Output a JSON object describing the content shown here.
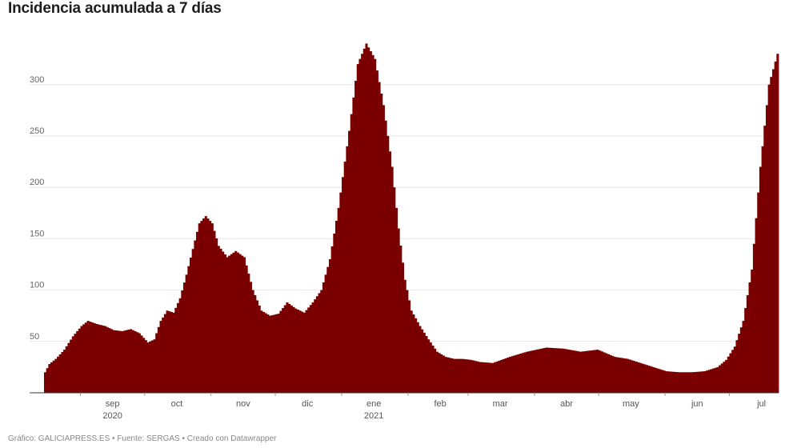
{
  "title": "Incidencia acumulada a 7 días",
  "footer": "Gráfico: GALICIAPRESS.ES • Fuente: SERGAS • Creado con Datawrapper",
  "chart_data": {
    "type": "bar",
    "title": "Incidencia acumulada a 7 días",
    "xlabel": "",
    "ylabel": "",
    "color": "#7a0000",
    "ylim": [
      0,
      345
    ],
    "yticks": [
      50,
      100,
      150,
      200,
      250,
      300
    ],
    "grid": true,
    "x_start": "2020-08-15",
    "x_end": "2021-07-23",
    "xtick_labels": [
      {
        "date": "2020-09-01",
        "label": "sep",
        "sub": "2020"
      },
      {
        "date": "2020-10-01",
        "label": "oct",
        "sub": ""
      },
      {
        "date": "2020-11-01",
        "label": "nov",
        "sub": ""
      },
      {
        "date": "2020-12-01",
        "label": "dic",
        "sub": ""
      },
      {
        "date": "2021-01-01",
        "label": "ene",
        "sub": "2021"
      },
      {
        "date": "2021-02-01",
        "label": "feb",
        "sub": ""
      },
      {
        "date": "2021-03-01",
        "label": "mar",
        "sub": ""
      },
      {
        "date": "2021-04-01",
        "label": "abr",
        "sub": ""
      },
      {
        "date": "2021-05-01",
        "label": "may",
        "sub": ""
      },
      {
        "date": "2021-06-01",
        "label": "jun",
        "sub": ""
      },
      {
        "date": "2021-07-01",
        "label": "jul",
        "sub": ""
      }
    ],
    "series": [
      {
        "x": [
          "2020-08-15",
          "2020-08-17",
          "2020-08-20",
          "2020-08-24",
          "2020-08-28",
          "2020-09-01",
          "2020-09-04",
          "2020-09-08",
          "2020-09-12",
          "2020-09-16",
          "2020-09-20",
          "2020-09-24",
          "2020-09-28",
          "2020-10-02",
          "2020-10-05",
          "2020-10-08",
          "2020-10-11",
          "2020-10-14",
          "2020-10-17",
          "2020-10-20",
          "2020-10-23",
          "2020-10-26",
          "2020-10-29",
          "2020-11-01",
          "2020-11-04",
          "2020-11-08",
          "2020-11-12",
          "2020-11-16",
          "2020-11-20",
          "2020-11-24",
          "2020-11-28",
          "2020-12-02",
          "2020-12-06",
          "2020-12-10",
          "2020-12-14",
          "2020-12-18",
          "2020-12-22",
          "2020-12-26",
          "2020-12-30",
          "2021-01-04",
          "2021-01-08",
          "2021-01-12",
          "2021-01-16",
          "2021-01-20",
          "2021-01-24",
          "2021-01-27",
          "2021-01-30",
          "2021-02-02",
          "2021-02-06",
          "2021-02-10",
          "2021-02-14",
          "2021-02-18",
          "2021-02-22",
          "2021-02-26",
          "2021-03-02",
          "2021-03-06",
          "2021-03-12",
          "2021-03-20",
          "2021-03-28",
          "2021-04-06",
          "2021-04-14",
          "2021-04-22",
          "2021-04-30",
          "2021-05-08",
          "2021-05-14",
          "2021-05-20",
          "2021-05-26",
          "2021-06-01",
          "2021-06-07",
          "2021-06-13",
          "2021-06-19",
          "2021-06-25",
          "2021-06-29",
          "2021-07-03",
          "2021-07-07",
          "2021-07-11",
          "2021-07-15",
          "2021-07-19",
          "2021-07-23"
        ],
        "values": [
          20,
          28,
          33,
          42,
          55,
          65,
          70,
          67,
          65,
          61,
          60,
          62,
          58,
          49,
          52,
          70,
          80,
          78,
          92,
          115,
          140,
          165,
          172,
          165,
          143,
          132,
          138,
          132,
          100,
          80,
          75,
          77,
          88,
          82,
          78,
          88,
          100,
          130,
          180,
          255,
          320,
          340,
          325,
          280,
          220,
          160,
          110,
          80,
          65,
          52,
          40,
          35,
          33,
          33,
          32,
          30,
          29,
          35,
          40,
          44,
          43,
          40,
          42,
          35,
          33,
          29,
          25,
          21,
          20,
          20,
          21,
          25,
          32,
          45,
          70,
          120,
          220,
          300,
          330
        ]
      }
    ]
  }
}
